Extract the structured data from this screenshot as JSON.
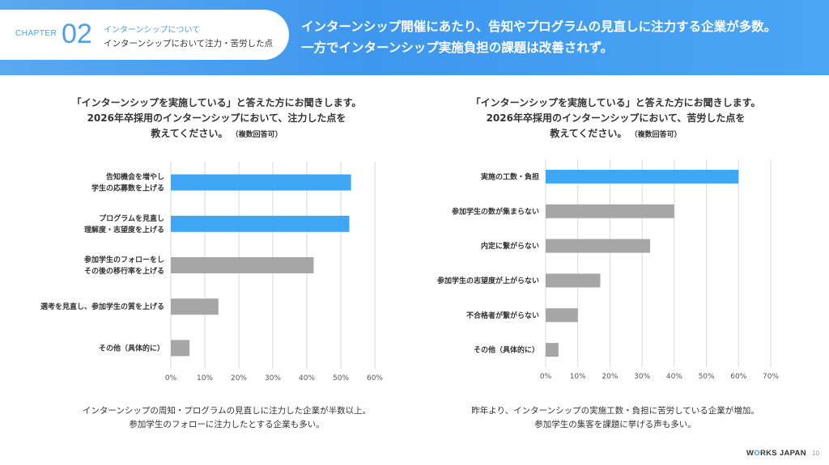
{
  "header": {
    "chapter_word": "CHAPTER",
    "chapter_number": "02",
    "chapter_subtitle": "インターンシップについて",
    "chapter_title": "インターンシップにおいて注力・苦労した点",
    "headline_line1": "インターンシップ開催にあたり、告知やプログラムの見直しに注力する企業が多数。",
    "headline_line2": "一方でインターンシップ実施負担の課題は改善されず。",
    "accent_color": "#3d97ee"
  },
  "left": {
    "question_line1": "「インターンシップを実施している」と答えた方にお聞きします。",
    "question_line2": "2026年卒採用のインターンシップにおいて、注力した点を",
    "question_line3": "教えてください。",
    "question_note": "（複数回答可）",
    "caption_line1": "インターンシップの周知・プログラムの見直しに注力した企業が半数以上。",
    "caption_line2": "参加学生のフォローに注力したとする企業も多い。"
  },
  "right": {
    "question_line1": "「インターンシップを実施している」と答えた方にお聞きします。",
    "question_line2": "2026年卒採用のインターンシップにおいて、苦労した点を",
    "question_line3": "教えてください。",
    "question_note": "（複数回答可）",
    "caption_line1": "昨年より、インターンシップの実施工数・負担に苦労している企業が増加。",
    "caption_line2": "参加学生の集客を課題に挙げる声も多い。"
  },
  "chart_data": [
    {
      "type": "bar",
      "orientation": "horizontal",
      "categories": [
        [
          "告知機会を増やし",
          "学生の応募数を上げる"
        ],
        [
          "プログラムを見直し",
          "理解度・志望度を上げる"
        ],
        [
          "参加学生のフォローをし",
          "その後の移行率を上げる"
        ],
        [
          "選考を見直し、参加学生の質を上げる"
        ],
        [
          "その他（具体的に）"
        ]
      ],
      "values": [
        53,
        52.5,
        42,
        14,
        5.5
      ],
      "bar_colors": [
        "#3ea6f2",
        "#3ea6f2",
        "#a6a6a6",
        "#a6a6a6",
        "#a6a6a6"
      ],
      "xlim": [
        0,
        60
      ],
      "ticks": [
        "0%",
        "10%",
        "20%",
        "30%",
        "40%",
        "50%",
        "60%"
      ],
      "grid": true
    },
    {
      "type": "bar",
      "orientation": "horizontal",
      "categories": [
        [
          "実施の工数・負担"
        ],
        [
          "参加学生の数が集まらない"
        ],
        [
          "内定に繋がらない"
        ],
        [
          "参加学生の志望度が上がらない"
        ],
        [
          "不合格者が繋がらない"
        ],
        [
          "その他（具体的に）"
        ]
      ],
      "values": [
        60,
        40,
        32.5,
        17,
        10,
        4
      ],
      "bar_colors": [
        "#3ea6f2",
        "#a6a6a6",
        "#a6a6a6",
        "#a6a6a6",
        "#a6a6a6",
        "#a6a6a6"
      ],
      "xlim": [
        0,
        70
      ],
      "ticks": [
        "0%",
        "10%",
        "20%",
        "30%",
        "40%",
        "50%",
        "60%",
        "70%"
      ],
      "grid": true
    }
  ],
  "footer": {
    "logo_w": "W",
    "logo_o": "O",
    "logo_rest": "RKS JAPAN",
    "page_number": "10"
  }
}
